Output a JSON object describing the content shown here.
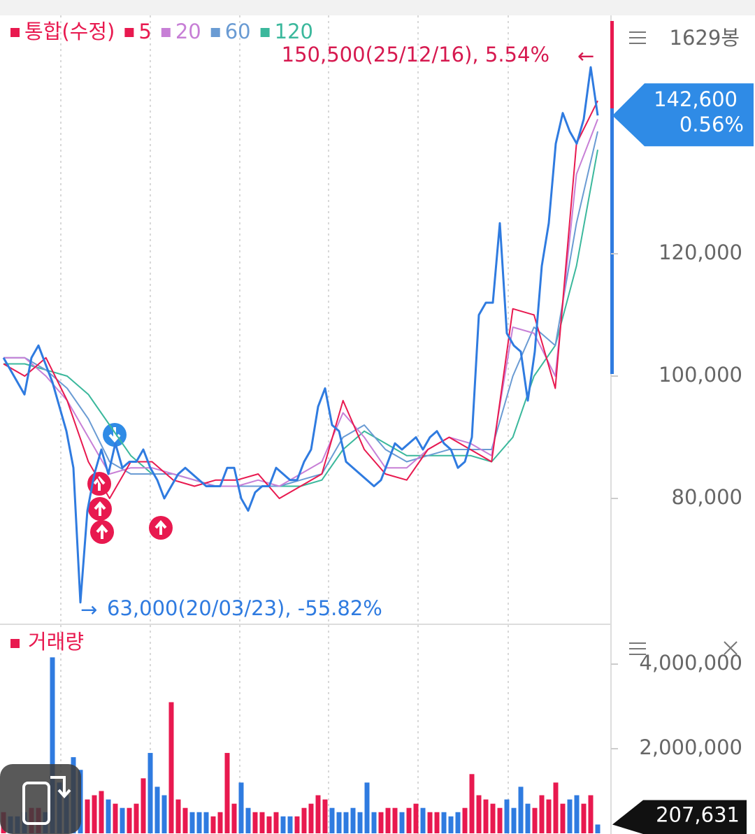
{
  "chart_data": [
    {
      "type": "line",
      "bar_count": "1629봉",
      "series": [
        {
          "name": "통합(수정)",
          "color": "#e8194f",
          "line_color": "#2f7be0",
          "values": [
            103000,
            101000,
            99000,
            97000,
            103000,
            105000,
            102000,
            99000,
            95000,
            91000,
            85000,
            63000,
            78000,
            84000,
            88000,
            84000,
            89000,
            85000,
            86000,
            86000,
            88000,
            85000,
            83000,
            80000,
            82000,
            84000,
            85000,
            84000,
            83000,
            82000,
            82000,
            82000,
            85000,
            85000,
            80000,
            78000,
            81000,
            82000,
            82000,
            85000,
            84000,
            83000,
            83000,
            86000,
            88000,
            95000,
            98000,
            92000,
            91000,
            86000,
            85000,
            84000,
            83000,
            82000,
            83000,
            86000,
            89000,
            88000,
            89000,
            90000,
            88000,
            90000,
            91000,
            89000,
            88000,
            85000,
            86000,
            90000,
            110000,
            112000,
            112000,
            125000,
            107000,
            105000,
            104000,
            96000,
            104000,
            118000,
            125000,
            138000,
            143000,
            140000,
            138000,
            142000,
            150500,
            142600
          ]
        },
        {
          "name": "5",
          "color": "#e8194f",
          "values": [
            102000,
            100000,
            103000,
            96000,
            86000,
            80000,
            86000,
            86000,
            83000,
            82000,
            83000,
            83000,
            84000,
            80000,
            82000,
            84000,
            96000,
            88000,
            84000,
            83000,
            88000,
            90000,
            88000,
            86000,
            111000,
            110000,
            98000,
            138000,
            145000
          ]
        },
        {
          "name": "20",
          "color": "#c77fd6",
          "values": [
            103000,
            103000,
            100000,
            96000,
            90000,
            84000,
            85000,
            85000,
            84000,
            83000,
            82000,
            82000,
            83000,
            82000,
            84000,
            86000,
            94000,
            90000,
            85000,
            85000,
            88000,
            90000,
            89000,
            87000,
            108000,
            107000,
            100000,
            133000,
            142000
          ]
        },
        {
          "name": "60",
          "color": "#6a9bd3",
          "values": [
            103000,
            103000,
            101000,
            98000,
            93000,
            86000,
            84000,
            84000,
            84000,
            83000,
            82000,
            82000,
            82000,
            82000,
            83000,
            84000,
            90000,
            92000,
            88000,
            86000,
            87000,
            88000,
            88000,
            88000,
            100000,
            108000,
            105000,
            125000,
            140000
          ]
        },
        {
          "name": "120",
          "color": "#3bb89c",
          "values": [
            102000,
            102000,
            101000,
            100000,
            97000,
            92000,
            87000,
            84000,
            84000,
            83000,
            82000,
            82000,
            82000,
            82000,
            82000,
            83000,
            88000,
            91000,
            89000,
            87000,
            87000,
            87000,
            87000,
            86000,
            90000,
            100000,
            105000,
            118000,
            137000
          ]
        }
      ],
      "ylim": [
        59771,
        158971
      ],
      "yticks": [
        {
          "value": 80000,
          "label": "80,000"
        },
        {
          "value": 100000,
          "label": "100,000"
        },
        {
          "value": 120000,
          "label": "120,000"
        }
      ],
      "annotations": [
        {
          "value": 150500,
          "text": "150,500(25/12/16), 5.54%",
          "color": "#d6194f"
        },
        {
          "value": 63000,
          "text": "63,000(20/03/23), -55.82%",
          "color": "#2f7be0"
        }
      ],
      "current_price_label": "142,600",
      "current_change": "0.56%"
    },
    {
      "type": "bar",
      "series": [
        {
          "name": "거래량",
          "color": "#e8194f",
          "down_color": "#2f7be0",
          "values": [
            500000,
            400000,
            400000,
            500000,
            600000,
            600000,
            500000,
            4160000,
            1200000,
            900000,
            1800000,
            1500000,
            800000,
            900000,
            1000000,
            800000,
            700000,
            600000,
            600000,
            700000,
            1300000,
            1900000,
            1100000,
            900000,
            3100000,
            800000,
            600000,
            500000,
            500000,
            500000,
            400000,
            500000,
            1900000,
            700000,
            1200000,
            600000,
            500000,
            500000,
            400000,
            500000,
            400000,
            400000,
            400000,
            600000,
            700000,
            900000,
            800000,
            600000,
            500000,
            500000,
            600000,
            500000,
            1200000,
            500000,
            500000,
            600000,
            600000,
            500000,
            600000,
            700000,
            600000,
            500000,
            500000,
            500000,
            400000,
            500000,
            600000,
            1400000,
            900000,
            800000,
            700000,
            600000,
            800000,
            600000,
            1100000,
            700000,
            600000,
            900000,
            800000,
            1200000,
            700000,
            800000,
            900000,
            700000,
            900000,
            207631
          ]
        }
      ],
      "ylim": [
        0,
        4909000
      ],
      "yticks": [
        {
          "value": 2000000,
          "label": "2,000,000"
        },
        {
          "value": 4000000,
          "label": "4,000,000"
        }
      ],
      "last_label": "207,631"
    }
  ]
}
